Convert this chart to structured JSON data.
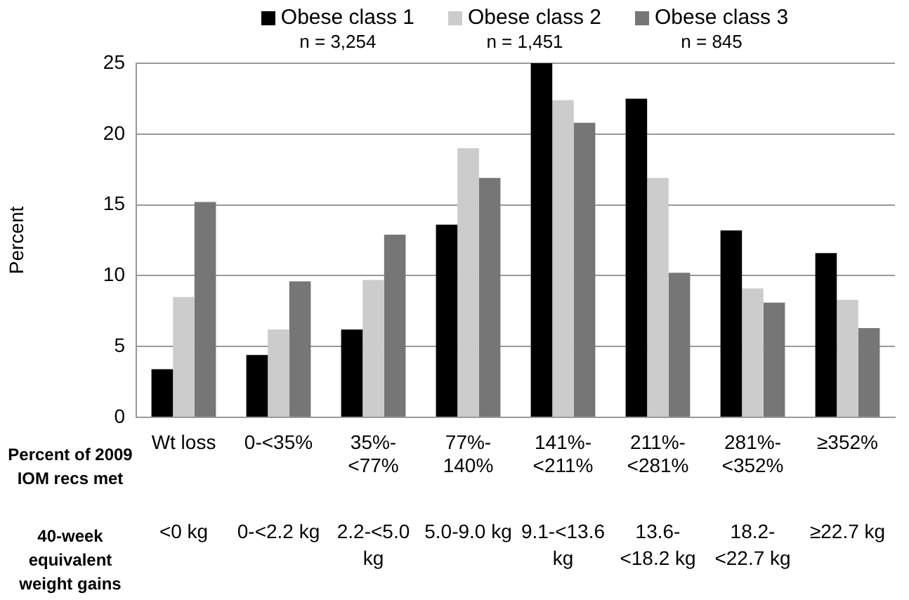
{
  "chart_data": {
    "type": "bar",
    "ylabel": "Percent",
    "xlabel": "Percent of 2009 IOM recs met",
    "categories": [
      "Wt loss",
      "0-<35%",
      "35%-<77%",
      "77%-140%",
      "141%-<211%",
      "211%-<281%",
      "281%-<352%",
      "≥352%"
    ],
    "series": [
      {
        "name": "Obese class 1\nn = 3,254",
        "color": "#000000",
        "values": [
          3.4,
          4.4,
          6.2,
          13.6,
          25,
          22.5,
          13.2,
          11.6
        ]
      },
      {
        "name": "Obese class 2\nn = 1,451",
        "color": "#cccccc",
        "values": [
          8.5,
          6.2,
          9.7,
          19.0,
          22.4,
          16.9,
          9.1,
          8.3
        ]
      },
      {
        "name": "Obese class 3\nn = 845",
        "color": "#767676",
        "values": [
          15.2,
          9.6,
          12.9,
          16.9,
          20.8,
          10.2,
          8.1,
          6.3
        ]
      }
    ],
    "annotations": [
      "40-week equivalent weight gains",
      "<0 kg",
      "0-<2.2 kg",
      "2.2-<5.0 kg",
      "5.0-9.0 kg",
      "9.1-<13.6 kg",
      "13.6-<18.2 kg",
      "18.2-<22.7 kg",
      "≥22.7 kg"
    ],
    "ylim": [
      0,
      25
    ],
    "yticks": [
      0,
      5,
      10,
      15,
      20,
      25
    ],
    "grid": "y",
    "legend": "top"
  }
}
